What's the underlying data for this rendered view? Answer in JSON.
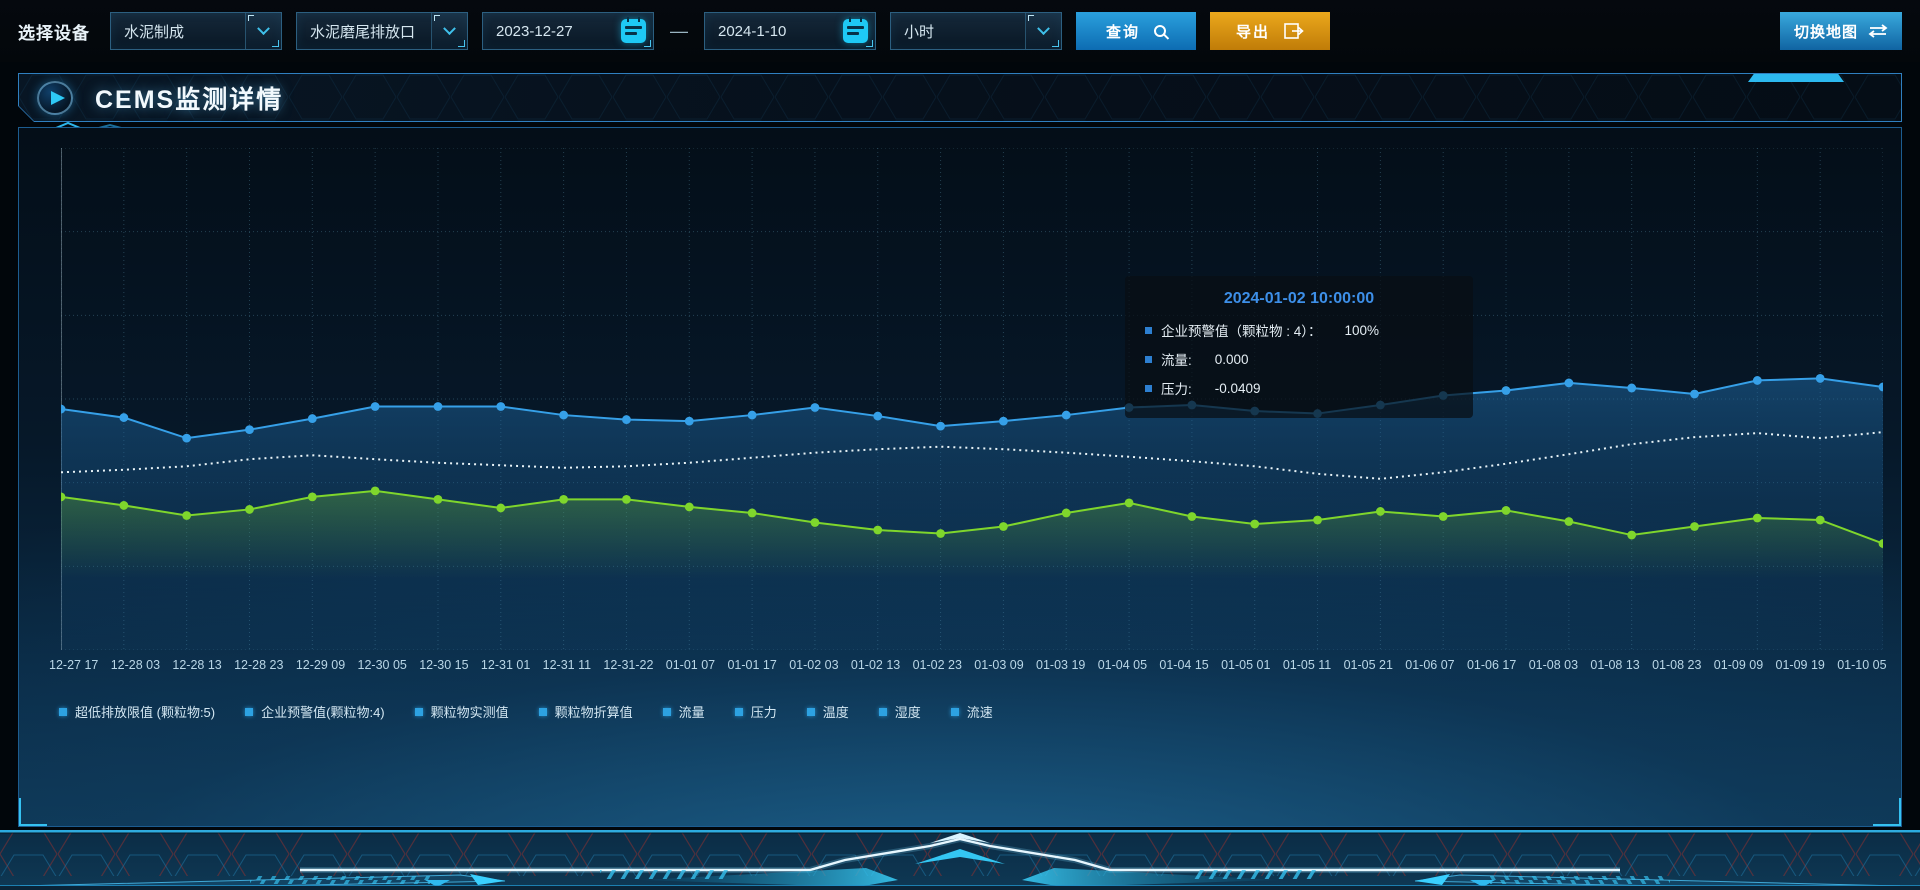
{
  "toolbar": {
    "device_label": "选择设备",
    "device_select": {
      "value": "水泥制成"
    },
    "outlet_select": {
      "value": "水泥磨尾排放口"
    },
    "date_start": "2023-12-27",
    "date_separator": "—",
    "date_end": "2024-1-10",
    "granularity_select": {
      "value": "小时"
    },
    "query_label": "查询",
    "export_label": "导出",
    "switch_map_label": "切换地图",
    "export_icon_glyph": "⇥",
    "switch_map_icon_glyph": "⇆"
  },
  "panel": {
    "title": "CEMS监测详情"
  },
  "tooltip": {
    "timestamp": "2024-01-02 10:00:00",
    "rows": [
      {
        "label": "企业预警值（颗粒物 : 4）：",
        "value": "100%"
      },
      {
        "label": "流量:",
        "value": "0.000"
      },
      {
        "label": "压力:",
        "value": "-0.0409"
      }
    ]
  },
  "icons": {
    "dropdown": "chevron-down-icon",
    "date": "calendar-icon",
    "query": "magnifier-icon",
    "export": "box-arrow-icon",
    "switch_map": "swap-arrows-icon",
    "title": "play-circle-icon"
  },
  "colors": {
    "accent_cyan": "#2fb9ef",
    "query_button": "#1488cc",
    "export_button": "#dd9912",
    "series_blue": "#36a0e8",
    "series_green": "#7fd62c",
    "series_white": "#e9f4f8",
    "tooltip_title": "#3d8fe8",
    "legend_marker": "#2da2e2",
    "grid": "rgba(120,190,220,0.28)"
  },
  "chart_data": {
    "type": "line",
    "title": "",
    "xlabel": "",
    "ylabel": "",
    "ylim": [
      0,
      100
    ],
    "grid": true,
    "legend_position": "bottom",
    "categories": [
      "12-27 17",
      "12-28 03",
      "12-28 13",
      "12-28 23",
      "12-29 09",
      "12-30 05",
      "12-30 15",
      "12-31 01",
      "12-31 11",
      "12-31-22",
      "01-01 07",
      "01-01 17",
      "01-02 03",
      "01-02 13",
      "01-02 23",
      "01-03 09",
      "01-03 19",
      "01-04 05",
      "01-04 15",
      "01-05 01",
      "01-05 11",
      "01-05 21",
      "01-06 07",
      "01-06 17",
      "01-08 03",
      "01-08 13",
      "01-08 23",
      "01-09 09",
      "01-09 19",
      "01-10 05"
    ],
    "legend_items": [
      "超低排放限值 (颗粒物:5)",
      "企业预警值(颗粒物:4)",
      "颗粒物实测值",
      "颗粒物折算值",
      "流量",
      "压力",
      "温度",
      "湿度",
      "流速"
    ],
    "series": [
      {
        "name": "流量",
        "color": "#36a0e8",
        "dashed": false,
        "symbols": true,
        "area": "blue",
        "values": [
          48.0,
          46.3,
          42.2,
          43.9,
          46.1,
          48.5,
          48.5,
          48.5,
          46.8,
          45.9,
          45.6,
          46.8,
          48.3,
          46.6,
          44.6,
          45.6,
          46.8,
          48.3,
          48.8,
          47.6,
          47.1,
          48.8,
          50.7,
          51.7,
          53.2,
          52.2,
          51.0,
          53.7,
          54.1,
          52.4
        ]
      },
      {
        "name": "企业预警值(颗粒物:4)",
        "color": "#e9f4f8",
        "dashed": true,
        "symbols": false,
        "area": null,
        "values": [
          35.4,
          35.9,
          36.6,
          38.0,
          38.8,
          38.0,
          37.3,
          36.8,
          36.3,
          36.6,
          37.3,
          38.3,
          39.3,
          40.0,
          40.5,
          40.0,
          39.3,
          38.5,
          37.6,
          36.6,
          35.1,
          34.1,
          35.4,
          37.1,
          39.0,
          41.0,
          42.4,
          43.2,
          42.2,
          43.4
        ]
      },
      {
        "name": "压力",
        "color": "#7fd62c",
        "dashed": false,
        "symbols": true,
        "area": "green",
        "values": [
          30.5,
          28.8,
          26.8,
          28.0,
          30.5,
          31.7,
          30.0,
          28.3,
          30.0,
          30.0,
          28.5,
          27.3,
          25.4,
          23.9,
          23.2,
          24.6,
          27.3,
          29.3,
          26.6,
          25.1,
          25.9,
          27.6,
          26.6,
          27.8,
          25.6,
          22.9,
          24.6,
          26.3,
          25.9,
          21.2
        ]
      }
    ]
  }
}
